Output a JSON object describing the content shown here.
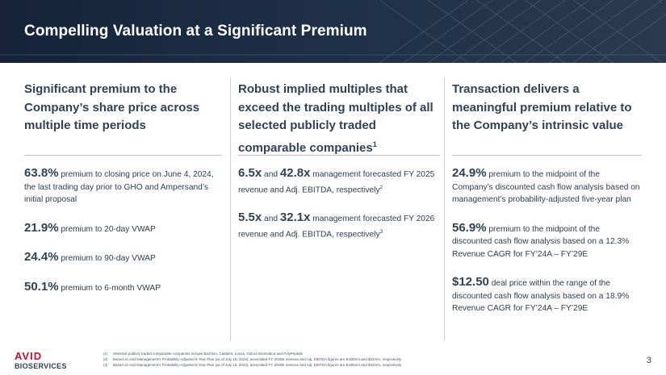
{
  "title": "Compelling Valuation at a Significant Premium",
  "columns": [
    {
      "heading": "Significant premium to the Company’s share price across multiple time periods",
      "items": [
        {
          "value": "63.8%",
          "text": "premium to closing price on June 4, 2024, the last trading day prior to GHO and Ampersand’s initial proposal"
        },
        {
          "value": "21.9%",
          "text": "premium to 20-day VWAP"
        },
        {
          "value": "24.4%",
          "text": "premium to 90-day VWAP"
        },
        {
          "value": "50.1%",
          "text": "premium to 6-month VWAP"
        }
      ]
    },
    {
      "heading": "Robust implied multiples that exceed the trading multiples of all selected publicly traded comparable companies",
      "heading_sup": "1",
      "items": [
        {
          "value": "6.5x",
          "joiner": "and",
          "value2": "42.8x",
          "text": "management forecasted FY 2025 revenue and Adj. EBITDA, respectively",
          "sup": "2"
        },
        {
          "value": "5.5x",
          "joiner": "and",
          "value2": "32.1x",
          "text": "management forecasted FY 2026 revenue and Adj. EBITDA, respectively",
          "sup": "3"
        }
      ]
    },
    {
      "heading": "Transaction delivers a meaningful premium relative to the Company’s intrinsic value",
      "items": [
        {
          "value": "24.9%",
          "text": "premium to the midpoint of the Company’s discounted cash flow analysis based on management’s probability-adjusted five-year plan"
        },
        {
          "value": "56.9%",
          "text": "premium to the midpoint of the discounted cash flow analysis based on a 12.3% Revenue CAGR for FY’24A – FY’29E"
        },
        {
          "value": "$12.50",
          "text": "deal price within the range of the discounted cash flow analysis based on a 18.9% Revenue CAGR for FY’24A – FY’29E"
        }
      ]
    }
  ],
  "footnotes": [
    {
      "num": "(1)",
      "text": "Selected publicly traded comparable companies include Bachem, Catalent, Lonza, Oxford Biomedica and PolyPeptide"
    },
    {
      "num": "(2)",
      "text": "Based on Avid Management’s Probability-Adjusted 5-Year Plan (as of July 15, 2024); associated FY 2025E revenue and Adj. EBITDA figures are $158mm and $24mm, respectively"
    },
    {
      "num": "(3)",
      "text": "Based on Avid Management’s Probability-Adjusted 5-Year Plan (as of July 15, 2024); associated FY 2026E revenue and Adj. EBITDA figures are $186mm and $32mm, respectively"
    }
  ],
  "logo": {
    "line1": "AVID",
    "line2": "BIOSERVICES"
  },
  "page_number": "3",
  "colors": {
    "header_bg": "#1b2b40",
    "accent_red": "#c8102e",
    "text": "#2f4256"
  }
}
